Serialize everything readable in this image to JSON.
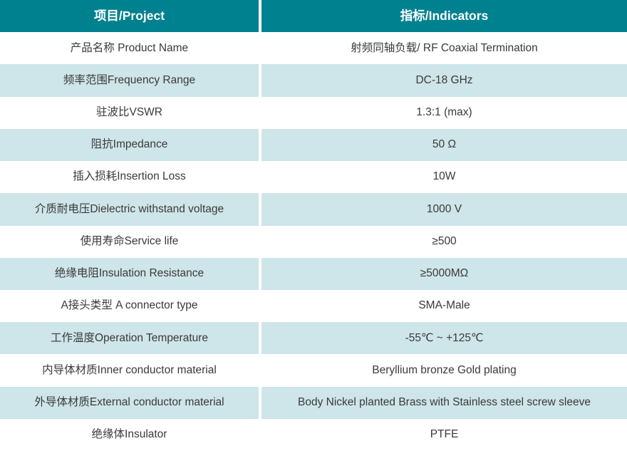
{
  "colors": {
    "header_bg": "#00818F",
    "header_text": "#ffffff",
    "alt_row_bg": "#cee5e9",
    "row_bg": "#ffffff",
    "body_text": "#3a3a3a"
  },
  "table": {
    "header": {
      "project_label": "项目/Project",
      "indicators_label": "指标/Indicators"
    },
    "rows": [
      {
        "project": "产品名称 Product Name",
        "indicator": "射频同轴负载/ RF Coaxial Termination"
      },
      {
        "project": "频率范围Frequency Range",
        "indicator": "DC-18 GHz"
      },
      {
        "project": "驻波比VSWR",
        "indicator": "1.3:1 (max)"
      },
      {
        "project": "阻抗Impedance",
        "indicator": "50 Ω"
      },
      {
        "project": "插入损耗Insertion Loss",
        "indicator": "10W"
      },
      {
        "project": "介质耐电压Dielectric withstand voltage",
        "indicator": "1000 V"
      },
      {
        "project": "使用寿命Service life",
        "indicator": "≥500"
      },
      {
        "project": "绝缘电阻Insulation Resistance",
        "indicator": "≥5000MΩ"
      },
      {
        "project": "A接头类型 A connector type",
        "indicator": "SMA-Male"
      },
      {
        "project": "工作温度Operation Temperature",
        "indicator": "-55℃ ~ +125℃"
      },
      {
        "project": "内导体材质Inner conductor material",
        "indicator": "Beryllium bronze Gold plating"
      },
      {
        "project": "外导体材质External conductor material",
        "indicator": "Body Nickel planted Brass with Stainless steel screw sleeve"
      },
      {
        "project": "绝缘体Insulator",
        "indicator": "PTFE"
      }
    ]
  }
}
